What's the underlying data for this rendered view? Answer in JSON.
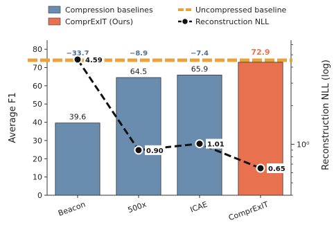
{
  "chart_data": {
    "type": "bar",
    "categories": [
      "Beacon",
      "500x",
      "ICAE",
      "ComprExIT"
    ],
    "values": [
      39.6,
      64.5,
      65.9,
      72.9
    ],
    "value_labels": [
      "39.6",
      "64.5",
      "65.9",
      "72.9"
    ],
    "deltas": [
      "−33.7",
      "−8.9",
      "−7.4"
    ],
    "bar_colors": [
      "#6a8caf",
      "#6a8caf",
      "#6a8caf",
      "#e8714f"
    ],
    "delta_color": "#4f6f8f",
    "highlight_color": "#e8714f",
    "baseline": {
      "value": 74,
      "color": "#e8a33a"
    },
    "ylabel": "Average F1",
    "ylim": [
      0,
      85
    ],
    "yticks": [
      "0",
      "10",
      "20",
      "30",
      "40",
      "50",
      "60",
      "70",
      "80"
    ],
    "y2label": "Reconstruction NLL (log)",
    "y2_scale": "log",
    "y2_tick_label": "10⁰",
    "nll": {
      "values": [
        4.59,
        0.9,
        1.01,
        0.65
      ],
      "labels": [
        "4.59",
        "0.90",
        "1.01",
        "0.65"
      ],
      "y2lim": [
        0.4,
        6.5
      ]
    },
    "legend": [
      {
        "label": "Compression baselines",
        "kind": "patch",
        "color": "#6a8caf"
      },
      {
        "label": "Uncompressed baseline",
        "kind": "dash",
        "color": "#e8a33a"
      },
      {
        "label": "ComprExIT (Ours)",
        "kind": "patch",
        "color": "#e8714f"
      },
      {
        "label": "Reconstruction NLL",
        "kind": "marker",
        "color": "#000000"
      }
    ]
  }
}
